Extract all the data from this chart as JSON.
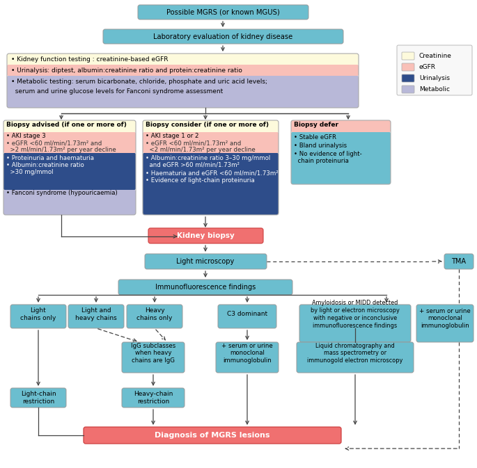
{
  "fig_width": 6.85,
  "fig_height": 6.73,
  "bg_color": "#ffffff",
  "colors": {
    "teal": "#6bbecf",
    "salmon": "#f07070",
    "yellow": "#fdfadc",
    "pink": "#f9c0b8",
    "navy": "#2e4d8a",
    "lavender": "#b8b8d8",
    "arrow": "#444444"
  },
  "legend_items": [
    {
      "label": "Creatinine",
      "color": "#fdfadc"
    },
    {
      "label": "eGFR",
      "color": "#f9c0b8"
    },
    {
      "label": "Urinalysis",
      "color": "#2e4d8a"
    },
    {
      "label": "Metabolic",
      "color": "#b8b8d8"
    }
  ]
}
